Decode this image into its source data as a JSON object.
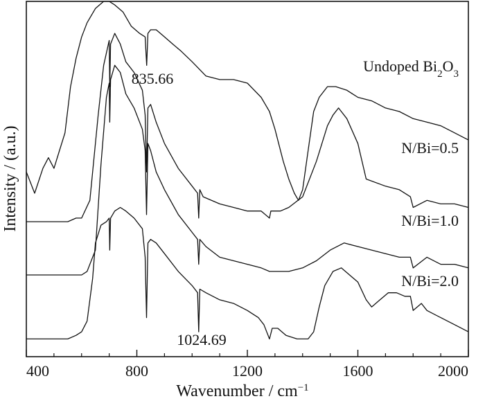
{
  "chart_data": {
    "type": "line",
    "title": "",
    "xlabel": "Wavenumber / cm",
    "xlabel_sup": "−1",
    "ylabel": "Intensity / (a.u.)",
    "xlim": [
      400,
      2000
    ],
    "xticks": [
      "400",
      "800",
      "1200",
      "1600",
      "2000"
    ],
    "y_ticks_shown": false,
    "series": [
      {
        "name": "Undoped Bi",
        "name_sub": "2",
        "name_tail": "O",
        "name_sub2": "3",
        "stroke": "#111111",
        "x": [
          400,
          430,
          460,
          480,
          500,
          520,
          540,
          560,
          580,
          600,
          620,
          650,
          680,
          700,
          720,
          750,
          780,
          810,
          830,
          835.66,
          840,
          850,
          870,
          900,
          930,
          960,
          1000,
          1050,
          1100,
          1150,
          1200,
          1250,
          1280,
          1300,
          1330,
          1350,
          1370,
          1385,
          1400,
          1420,
          1440,
          1460,
          1490,
          1520,
          1560,
          1600,
          1650,
          1700,
          1750,
          1800,
          1850,
          1900,
          1950,
          2000
        ],
        "y": [
          0.52,
          0.46,
          0.53,
          0.56,
          0.53,
          0.58,
          0.63,
          0.76,
          0.84,
          0.9,
          0.94,
          0.98,
          1.0,
          1.0,
          0.99,
          0.97,
          0.93,
          0.91,
          0.9,
          0.82,
          0.91,
          0.92,
          0.92,
          0.9,
          0.88,
          0.86,
          0.83,
          0.79,
          0.78,
          0.78,
          0.77,
          0.73,
          0.69,
          0.64,
          0.55,
          0.5,
          0.46,
          0.44,
          0.47,
          0.58,
          0.69,
          0.73,
          0.76,
          0.76,
          0.75,
          0.73,
          0.72,
          0.7,
          0.69,
          0.67,
          0.66,
          0.65,
          0.63,
          0.61
        ]
      },
      {
        "name": "N/Bi=0.5",
        "stroke": "#111111",
        "x": [
          400,
          450,
          500,
          550,
          580,
          600,
          630,
          660,
          680,
          700,
          702,
          705,
          720,
          740,
          760,
          790,
          820,
          830,
          835,
          840,
          850,
          870,
          900,
          950,
          1000,
          1020,
          1024,
          1028,
          1040,
          1100,
          1150,
          1200,
          1250,
          1280,
          1285,
          1290,
          1320,
          1350,
          1400,
          1450,
          1490,
          1510,
          1530,
          1560,
          1600,
          1630,
          1700,
          1750,
          1790,
          1800,
          1850,
          1900,
          1950,
          2000
        ],
        "y": [
          0.38,
          0.38,
          0.38,
          0.38,
          0.39,
          0.39,
          0.44,
          0.68,
          0.82,
          0.89,
          0.76,
          0.88,
          0.91,
          0.88,
          0.83,
          0.8,
          0.75,
          0.68,
          0.52,
          0.7,
          0.71,
          0.66,
          0.6,
          0.53,
          0.48,
          0.46,
          0.39,
          0.47,
          0.45,
          0.43,
          0.42,
          0.41,
          0.41,
          0.39,
          0.41,
          0.41,
          0.41,
          0.42,
          0.45,
          0.55,
          0.65,
          0.68,
          0.7,
          0.67,
          0.6,
          0.5,
          0.48,
          0.47,
          0.45,
          0.42,
          0.44,
          0.43,
          0.43,
          0.42
        ]
      },
      {
        "name": "N/Bi=1.0",
        "stroke": "#111111",
        "x": [
          400,
          450,
          500,
          550,
          600,
          620,
          650,
          670,
          690,
          700,
          702,
          705,
          720,
          740,
          760,
          790,
          820,
          830,
          835,
          840,
          850,
          870,
          900,
          950,
          1000,
          1020,
          1024,
          1028,
          1050,
          1100,
          1150,
          1200,
          1250,
          1280,
          1300,
          1350,
          1400,
          1450,
          1500,
          1550,
          1600,
          1650,
          1700,
          1750,
          1790,
          1800,
          1850,
          1900,
          1950,
          2000
        ],
        "y": [
          0.23,
          0.23,
          0.23,
          0.23,
          0.23,
          0.24,
          0.3,
          0.54,
          0.73,
          0.77,
          0.66,
          0.78,
          0.82,
          0.8,
          0.74,
          0.7,
          0.64,
          0.58,
          0.4,
          0.6,
          0.58,
          0.52,
          0.47,
          0.4,
          0.35,
          0.33,
          0.26,
          0.33,
          0.31,
          0.28,
          0.27,
          0.26,
          0.25,
          0.24,
          0.24,
          0.24,
          0.25,
          0.27,
          0.3,
          0.32,
          0.31,
          0.3,
          0.29,
          0.28,
          0.28,
          0.25,
          0.28,
          0.26,
          0.26,
          0.25
        ]
      },
      {
        "name": "N/Bi=2.0",
        "stroke": "#111111",
        "x": [
          400,
          450,
          500,
          550,
          580,
          600,
          620,
          640,
          650,
          670,
          690,
          700,
          702,
          705,
          720,
          740,
          760,
          790,
          820,
          830,
          835,
          840,
          850,
          870,
          900,
          950,
          1000,
          1020,
          1024,
          1028,
          1050,
          1100,
          1150,
          1200,
          1240,
          1260,
          1275,
          1280,
          1290,
          1310,
          1340,
          1380,
          1420,
          1440,
          1460,
          1480,
          1510,
          1540,
          1570,
          1600,
          1630,
          1650,
          1680,
          1710,
          1740,
          1770,
          1790,
          1800,
          1830,
          1850,
          1900,
          1950,
          2000
        ],
        "y": [
          0.05,
          0.05,
          0.05,
          0.05,
          0.06,
          0.07,
          0.1,
          0.22,
          0.32,
          0.37,
          0.38,
          0.39,
          0.3,
          0.39,
          0.41,
          0.42,
          0.41,
          0.39,
          0.36,
          0.28,
          0.11,
          0.32,
          0.33,
          0.32,
          0.29,
          0.24,
          0.2,
          0.18,
          0.07,
          0.19,
          0.18,
          0.16,
          0.15,
          0.13,
          0.11,
          0.09,
          0.06,
          0.05,
          0.08,
          0.08,
          0.06,
          0.05,
          0.05,
          0.07,
          0.14,
          0.2,
          0.24,
          0.25,
          0.23,
          0.21,
          0.16,
          0.14,
          0.16,
          0.18,
          0.18,
          0.17,
          0.17,
          0.13,
          0.15,
          0.13,
          0.11,
          0.09,
          0.07
        ]
      }
    ],
    "annotations": [
      {
        "text": "835.66",
        "x": 835.66,
        "series": 0
      },
      {
        "text": "1024.69",
        "x": 1024.69,
        "series": 3
      }
    ]
  }
}
